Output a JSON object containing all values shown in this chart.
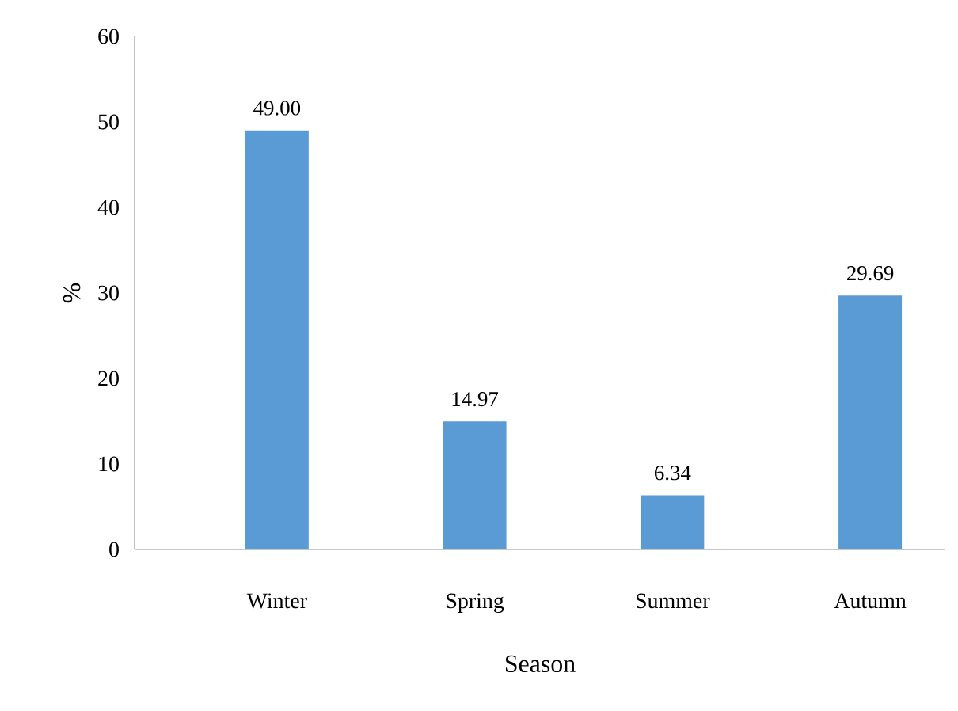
{
  "chart_data": {
    "type": "bar",
    "xlabel": "Season",
    "ylabel": "%",
    "categories": [
      "Winter",
      "Spring",
      "Summer",
      "Autumn"
    ],
    "values": [
      49.0,
      14.97,
      6.34,
      29.69
    ],
    "value_labels": [
      "49.00",
      "14.97",
      "6.34",
      "29.69"
    ],
    "color": "#5b9bd5",
    "ylim": [
      0,
      60
    ],
    "yticks": [
      0,
      10,
      20,
      30,
      40,
      50,
      60
    ],
    "grid": false
  }
}
